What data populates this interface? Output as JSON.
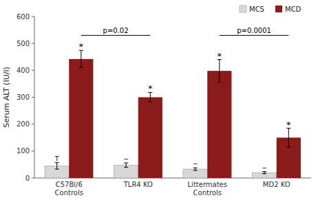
{
  "chart_data": {
    "type": "bar",
    "categories": [
      "C57Bl/6\nControls",
      "TLR4 KO",
      "Littermates\nControls",
      "MD2 KO"
    ],
    "series": [
      {
        "name": "MCS",
        "color": "#d8d8d8",
        "values": [
          45,
          48,
          33,
          20
        ],
        "errors": [
          12,
          8,
          5,
          4
        ],
        "symbols": [
          "T",
          "−",
          "−",
          "−"
        ]
      },
      {
        "name": "MCD",
        "color": "#8B1A1A",
        "values": [
          442,
          300,
          398,
          150
        ],
        "errors": [
          32,
          18,
          42,
          35
        ],
        "symbols": [
          "*",
          "*",
          "*",
          "*"
        ]
      }
    ],
    "y_label": "Serum ALT (IU/l)",
    "ylim": [
      0,
      600
    ],
    "yticks": [
      0,
      100,
      200,
      300,
      400,
      500,
      600
    ],
    "grid": false,
    "legend": "top",
    "annotations": [
      {
        "text": "p=0.02",
        "y": 530,
        "series": "MCD",
        "categories": [
          "C57Bl/6\nControls",
          "TLR4 KO"
        ]
      },
      {
        "text": "p=0.0001",
        "y": 530,
        "series": "MCD",
        "categories": [
          "Littermates\nControls",
          "MD2 KO"
        ]
      }
    ]
  }
}
